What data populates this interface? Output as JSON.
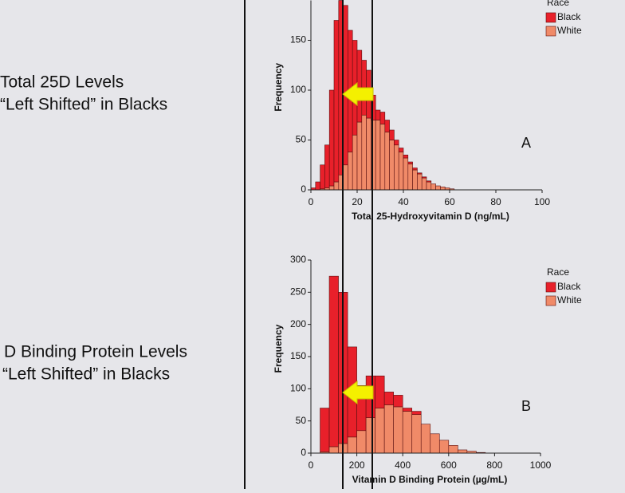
{
  "slide": {
    "captions": [
      [
        "Total 25D Levels",
        "“Left Shifted” in Blacks"
      ],
      [
        "D Binding Protein Levels",
        "“Left Shifted” in Blacks"
      ]
    ]
  },
  "chart_data": [
    {
      "type": "histogram",
      "stacked": true,
      "annotation": "A",
      "x_label": "Total 25-Hydroxyvitamin D (ng/mL)",
      "y_label": "Frequency",
      "legend_title": "Race",
      "bins": [
        0,
        2,
        4,
        6,
        8,
        10,
        12,
        14,
        16,
        18,
        20,
        22,
        24,
        26,
        28,
        30,
        32,
        34,
        36,
        38,
        40,
        42,
        44,
        46,
        48,
        50,
        52,
        54,
        56,
        58,
        60,
        62
      ],
      "series": [
        {
          "name": "Black",
          "color": "#e8202a",
          "values": [
            2,
            8,
            24,
            43,
            96,
            162,
            175,
            160,
            122,
            95,
            72,
            55,
            48,
            25,
            10,
            12,
            12,
            10,
            5,
            4,
            3,
            2,
            2,
            1,
            1,
            1,
            0,
            0,
            0,
            0,
            0
          ]
        },
        {
          "name": "White",
          "color": "#f08a68",
          "values": [
            0,
            0,
            1,
            2,
            4,
            8,
            15,
            25,
            38,
            55,
            68,
            75,
            72,
            70,
            70,
            66,
            58,
            50,
            45,
            38,
            32,
            26,
            20,
            16,
            12,
            8,
            6,
            4,
            3,
            2,
            1
          ]
        }
      ],
      "xlim": [
        0,
        100
      ],
      "xticks": [
        0,
        20,
        40,
        60,
        80,
        100
      ],
      "ylim": [
        0,
        190
      ],
      "yticks": [
        0,
        50,
        100,
        150
      ]
    },
    {
      "type": "histogram",
      "stacked": true,
      "annotation": "B",
      "x_label": "Vitamin D Binding Protein (µg/mL)",
      "y_label": "Frequency",
      "legend_title": "Race",
      "bins": [
        40,
        80,
        120,
        160,
        200,
        240,
        280,
        320,
        360,
        400,
        440,
        480,
        520,
        560,
        600,
        640,
        680,
        720,
        760
      ],
      "series": [
        {
          "name": "Black",
          "color": "#e8202a",
          "values": [
            68,
            265,
            235,
            140,
            70,
            65,
            50,
            20,
            18,
            5,
            5,
            0,
            0,
            0,
            0,
            0,
            0,
            0
          ]
        },
        {
          "name": "White",
          "color": "#f08a68",
          "values": [
            2,
            10,
            15,
            25,
            35,
            55,
            70,
            75,
            72,
            65,
            60,
            45,
            30,
            20,
            12,
            5,
            3,
            1
          ]
        }
      ],
      "xlim": [
        0,
        1000
      ],
      "xticks": [
        0,
        200,
        400,
        600,
        800,
        1000
      ],
      "ylim": [
        0,
        300
      ],
      "yticks": [
        0,
        50,
        100,
        150,
        200,
        250,
        300
      ]
    }
  ]
}
